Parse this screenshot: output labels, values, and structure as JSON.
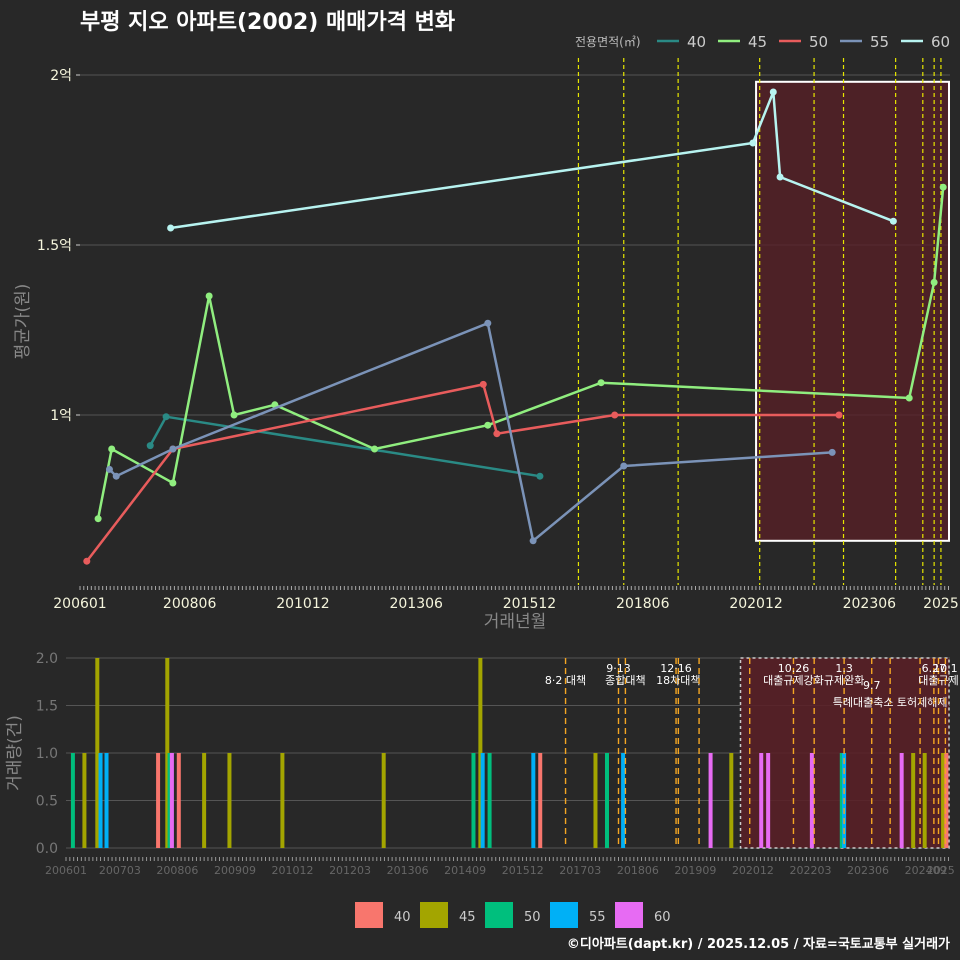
{
  "title": "부평 지오 아파트(2002) 매매가격 변화",
  "footer": "©디아파트(dapt.kr) / 2025.12.05 / 자료=국토교통부 실거래가",
  "colors": {
    "price_series": [
      "#2a8a85",
      "#90ee7f",
      "#e85c5c",
      "#7b93b8",
      "#b7f3f0"
    ],
    "volume_series": [
      "#f8766d",
      "#a3a500",
      "#00bf7d",
      "#00b0f6",
      "#e76bf3"
    ],
    "policy_line": "#e6e600",
    "policy_line_bottom": "#f5a623",
    "highlight_fill": "#5a1f26",
    "text_axis": "#f5f5dc",
    "grid": "#555555"
  },
  "chart_data": [
    {
      "type": "line",
      "title": "부평 지오 아파트(2002) 매매가격 변화",
      "xlabel": "거래년월",
      "ylabel": "평균가(원)",
      "legend_title": "전용면적(㎡)",
      "legend_position": "top-right",
      "x_ticks": [
        "200601",
        "200806",
        "201012",
        "201306",
        "201512",
        "201806",
        "202012",
        "202306",
        "2025"
      ],
      "x_tick_values": [
        2006.0,
        2008.42,
        2010.92,
        2013.42,
        2015.92,
        2018.42,
        2020.92,
        2023.42,
        2025.0
      ],
      "x_range": [
        2006.0,
        2025.2
      ],
      "y_ticks": [
        "1억",
        "1.5억",
        "2억"
      ],
      "y_tick_values": [
        1.0,
        1.5,
        2.0
      ],
      "y_range": [
        0.5,
        2.05
      ],
      "series": [
        {
          "name": "40",
          "points": [
            [
              2007.55,
              0.91
            ],
            [
              2007.9,
              0.995
            ],
            [
              2016.15,
              0.82
            ]
          ]
        },
        {
          "name": "45",
          "points": [
            [
              2006.4,
              0.695
            ],
            [
              2006.7,
              0.9
            ],
            [
              2008.05,
              0.8
            ],
            [
              2008.85,
              1.35
            ],
            [
              2009.4,
              1.0
            ],
            [
              2010.3,
              1.03
            ],
            [
              2012.5,
              0.9
            ],
            [
              2015.0,
              0.97
            ],
            [
              2017.5,
              1.095
            ],
            [
              2024.3,
              1.05
            ],
            [
              2024.85,
              1.39
            ],
            [
              2025.05,
              1.67
            ]
          ]
        },
        {
          "name": "50",
          "points": [
            [
              2006.15,
              0.57
            ],
            [
              2008.05,
              0.9
            ],
            [
              2014.9,
              1.09
            ],
            [
              2015.2,
              0.945
            ],
            [
              2017.8,
              1.0
            ],
            [
              2022.75,
              1.0
            ]
          ]
        },
        {
          "name": "55",
          "points": [
            [
              2006.65,
              0.84
            ],
            [
              2006.8,
              0.82
            ],
            [
              2008.05,
              0.9
            ],
            [
              2015.0,
              1.27
            ],
            [
              2016.0,
              0.63
            ],
            [
              2018.0,
              0.85
            ],
            [
              2022.6,
              0.89
            ]
          ]
        },
        {
          "name": "60",
          "points": [
            [
              2008.0,
              1.55
            ],
            [
              2020.85,
              1.8
            ],
            [
              2021.3,
              1.95
            ],
            [
              2021.45,
              1.7
            ],
            [
              2023.95,
              1.57
            ]
          ]
        }
      ],
      "policy_lines_x": [
        2017.0,
        2018.0,
        2019.2,
        2021.0,
        2022.2,
        2022.85,
        2024.0,
        2024.6,
        2024.85,
        2025.0
      ],
      "highlight_range_x": [
        2020.92,
        2025.2
      ],
      "highlight_range_y": [
        0.63,
        1.98
      ]
    },
    {
      "type": "bar",
      "ylabel": "거래량(건)",
      "legend_position": "bottom",
      "legend": [
        "40",
        "45",
        "50",
        "55",
        "60"
      ],
      "x_ticks": [
        "200601",
        "200703",
        "200806",
        "200909",
        "201012",
        "201203",
        "201306",
        "201409",
        "201512",
        "201703",
        "201806",
        "201909",
        "202012",
        "202203",
        "202306",
        "202409",
        "2025"
      ],
      "y_ticks": [
        "0.0",
        "0.5",
        "1.0",
        "1.5",
        "2.0"
      ],
      "y_range": [
        0,
        2.0
      ],
      "bars": [
        {
          "x": 2006.15,
          "series": "50",
          "value": 1
        },
        {
          "x": 2006.4,
          "series": "45",
          "value": 1
        },
        {
          "x": 2006.68,
          "series": "45",
          "value": 2
        },
        {
          "x": 2006.75,
          "series": "55",
          "value": 1
        },
        {
          "x": 2006.88,
          "series": "55",
          "value": 1
        },
        {
          "x": 2008.0,
          "series": "40",
          "value": 1
        },
        {
          "x": 2008.2,
          "series": "45",
          "value": 2
        },
        {
          "x": 2008.25,
          "series": "50",
          "value": 1
        },
        {
          "x": 2008.3,
          "series": "60",
          "value": 1
        },
        {
          "x": 2008.45,
          "series": "40",
          "value": 1
        },
        {
          "x": 2009.0,
          "series": "45",
          "value": 1
        },
        {
          "x": 2009.55,
          "series": "45",
          "value": 1
        },
        {
          "x": 2010.7,
          "series": "45",
          "value": 1
        },
        {
          "x": 2012.9,
          "series": "45",
          "value": 1
        },
        {
          "x": 2014.85,
          "series": "50",
          "value": 1
        },
        {
          "x": 2015.0,
          "series": "45",
          "value": 2
        },
        {
          "x": 2015.05,
          "series": "55",
          "value": 1
        },
        {
          "x": 2015.2,
          "series": "50",
          "value": 1
        },
        {
          "x": 2016.15,
          "series": "55",
          "value": 1
        },
        {
          "x": 2016.3,
          "series": "40",
          "value": 1
        },
        {
          "x": 2017.5,
          "series": "45",
          "value": 1
        },
        {
          "x": 2017.75,
          "series": "50",
          "value": 1
        },
        {
          "x": 2018.1,
          "series": "55",
          "value": 1
        },
        {
          "x": 2020.0,
          "series": "60",
          "value": 1
        },
        {
          "x": 2020.45,
          "series": "45",
          "value": 1
        },
        {
          "x": 2021.1,
          "series": "60",
          "value": 1
        },
        {
          "x": 2021.25,
          "series": "60",
          "value": 1
        },
        {
          "x": 2022.2,
          "series": "60",
          "value": 1
        },
        {
          "x": 2022.85,
          "series": "50",
          "value": 1
        },
        {
          "x": 2022.9,
          "series": "55",
          "value": 1
        },
        {
          "x": 2024.15,
          "series": "60",
          "value": 1
        },
        {
          "x": 2024.4,
          "series": "45",
          "value": 1
        },
        {
          "x": 2024.65,
          "series": "45",
          "value": 1
        },
        {
          "x": 2025.05,
          "series": "45",
          "value": 1
        },
        {
          "x": 2025.12,
          "series": "40",
          "value": 1
        }
      ],
      "policy_lines": [
        {
          "x": 2016.85,
          "label": "8·2 대책",
          "row": 1
        },
        {
          "x": 2018.0,
          "label": "9·13",
          "row": 0
        },
        {
          "x": 2018.15,
          "label": "종합대책",
          "row": 1
        },
        {
          "x": 2019.25,
          "label": "12·16",
          "row": 0
        },
        {
          "x": 2019.3,
          "label": "18차대책",
          "row": 1
        },
        {
          "x": 2019.75,
          "label": "",
          "row": 0
        },
        {
          "x": 2020.85,
          "label": "",
          "row": 0
        },
        {
          "x": 2021.8,
          "label": "10.26",
          "row": 0
        },
        {
          "x": 2021.8,
          "label": "대출규제강화",
          "row": 1
        },
        {
          "x": 2022.25,
          "label": "",
          "row": 0
        },
        {
          "x": 2022.9,
          "label": "1.3",
          "row": 0
        },
        {
          "x": 2022.9,
          "label": "규제완화",
          "row": 1
        },
        {
          "x": 2023.5,
          "label": "9.7",
          "row": 2
        },
        {
          "x": 2023.9,
          "label": "특례대출축소 토허제해제",
          "row": 3
        },
        {
          "x": 2024.55,
          "label": "",
          "row": 0
        },
        {
          "x": 2024.85,
          "label": "6.27",
          "row": 0
        },
        {
          "x": 2024.95,
          "label": "대출규제",
          "row": 1
        },
        {
          "x": 2025.1,
          "label": "10.1",
          "row": 0
        }
      ],
      "highlight_range_x": [
        2020.65,
        2025.2
      ]
    }
  ]
}
